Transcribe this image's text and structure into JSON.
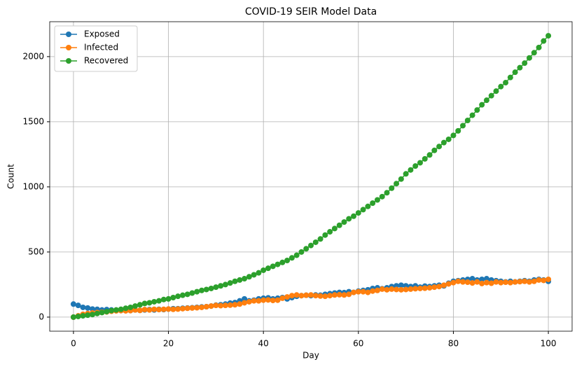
{
  "chart_data": {
    "type": "line",
    "title": "COVID-19 SEIR Model Data",
    "x_label": "Day",
    "y_label": "Count",
    "x": [
      0,
      1,
      2,
      3,
      4,
      5,
      6,
      7,
      8,
      9,
      10,
      11,
      12,
      13,
      14,
      15,
      16,
      17,
      18,
      19,
      20,
      21,
      22,
      23,
      24,
      25,
      26,
      27,
      28,
      29,
      30,
      31,
      32,
      33,
      34,
      35,
      36,
      37,
      38,
      39,
      40,
      41,
      42,
      43,
      44,
      45,
      46,
      47,
      48,
      49,
      50,
      51,
      52,
      53,
      54,
      55,
      56,
      57,
      58,
      59,
      60,
      61,
      62,
      63,
      64,
      65,
      66,
      67,
      68,
      69,
      70,
      71,
      72,
      73,
      74,
      75,
      76,
      77,
      78,
      79,
      80,
      81,
      82,
      83,
      84,
      85,
      86,
      87,
      88,
      89,
      90,
      91,
      92,
      93,
      94,
      95,
      96,
      97,
      98,
      99,
      100
    ],
    "series": [
      {
        "name": "Exposed",
        "color": "#1f77b4",
        "values": [
          100,
          90,
          75,
          70,
          62,
          60,
          55,
          58,
          55,
          52,
          50,
          52,
          50,
          55,
          52,
          55,
          58,
          55,
          60,
          58,
          62,
          65,
          65,
          68,
          70,
          72,
          75,
          78,
          80,
          85,
          92,
          95,
          100,
          108,
          112,
          125,
          140,
          125,
          130,
          140,
          145,
          148,
          140,
          145,
          150,
          140,
          150,
          160,
          165,
          168,
          165,
          170,
          168,
          175,
          180,
          185,
          190,
          188,
          195,
          190,
          200,
          205,
          210,
          220,
          225,
          218,
          225,
          235,
          240,
          245,
          240,
          235,
          240,
          230,
          238,
          235,
          240,
          245,
          240,
          260,
          275,
          280,
          285,
          290,
          295,
          285,
          290,
          295,
          285,
          280,
          275,
          270,
          275,
          270,
          275,
          280,
          275,
          285,
          290,
          285,
          275
        ]
      },
      {
        "name": "Infected",
        "color": "#ff7f0e",
        "values": [
          0,
          10,
          22,
          28,
          32,
          35,
          38,
          40,
          45,
          48,
          50,
          48,
          50,
          55,
          52,
          58,
          55,
          60,
          58,
          60,
          62,
          60,
          62,
          65,
          68,
          70,
          72,
          75,
          80,
          85,
          90,
          88,
          90,
          92,
          95,
          100,
          110,
          118,
          125,
          125,
          130,
          132,
          128,
          130,
          145,
          155,
          165,
          170,
          165,
          168,
          170,
          165,
          162,
          160,
          165,
          170,
          172,
          170,
          175,
          190,
          195,
          195,
          190,
          200,
          205,
          215,
          210,
          215,
          212,
          210,
          212,
          215,
          218,
          220,
          222,
          225,
          230,
          235,
          245,
          255,
          265,
          275,
          270,
          268,
          262,
          270,
          258,
          265,
          260,
          270,
          265,
          268,
          265,
          270,
          272,
          275,
          270,
          275,
          285,
          282,
          290
        ]
      },
      {
        "name": "Recovered",
        "color": "#2ca02c",
        "values": [
          0,
          5,
          10,
          15,
          20,
          28,
          35,
          42,
          50,
          55,
          60,
          68,
          75,
          85,
          95,
          105,
          110,
          118,
          125,
          135,
          140,
          150,
          160,
          168,
          175,
          185,
          195,
          205,
          212,
          220,
          230,
          240,
          250,
          262,
          275,
          285,
          295,
          310,
          325,
          340,
          360,
          375,
          390,
          405,
          420,
          435,
          455,
          475,
          500,
          525,
          550,
          575,
          600,
          630,
          655,
          680,
          705,
          730,
          755,
          775,
          800,
          825,
          850,
          875,
          900,
          925,
          955,
          990,
          1025,
          1060,
          1100,
          1130,
          1160,
          1185,
          1215,
          1245,
          1280,
          1310,
          1340,
          1365,
          1395,
          1430,
          1470,
          1510,
          1550,
          1590,
          1630,
          1665,
          1700,
          1735,
          1770,
          1800,
          1840,
          1880,
          1915,
          1950,
          1990,
          2030,
          2070,
          2120,
          2160
        ]
      }
    ],
    "xlim": [
      -5,
      105
    ],
    "ylim": [
      -108,
      2268
    ],
    "xticks": [
      0,
      20,
      40,
      60,
      80,
      100
    ],
    "yticks": [
      0,
      500,
      1000,
      1500,
      2000
    ],
    "grid": true,
    "legend": "upper left"
  }
}
